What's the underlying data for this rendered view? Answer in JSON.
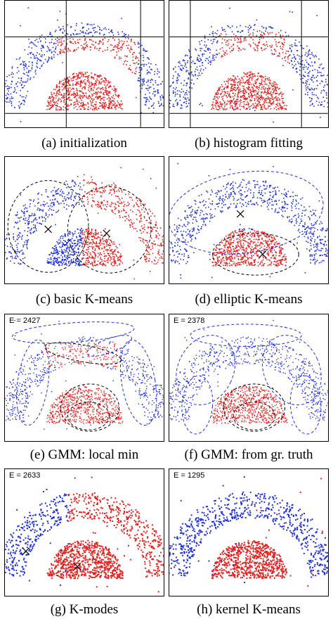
{
  "figure": {
    "panels": [
      {
        "id": "a",
        "caption": "(a) initialization",
        "energy": ""
      },
      {
        "id": "b",
        "caption": "(b) histogram fitting",
        "energy": ""
      },
      {
        "id": "c",
        "caption": "(c) basic K-means",
        "energy": ""
      },
      {
        "id": "d",
        "caption": "(d) elliptic K-means",
        "energy": ""
      },
      {
        "id": "e",
        "caption": "(e) GMM: local min",
        "energy": "E = 2427"
      },
      {
        "id": "f",
        "caption": "(f) GMM: from gr. truth",
        "energy": "E = 2378"
      },
      {
        "id": "g",
        "caption": "(g) K-modes",
        "energy": "E = 2633"
      },
      {
        "id": "h",
        "caption": "(h) kernel K-means",
        "energy": "E = 1295"
      }
    ],
    "colors": {
      "cluster_blue": "#1f2fd8",
      "cluster_red": "#e0201e",
      "frame": "#000000"
    }
  }
}
